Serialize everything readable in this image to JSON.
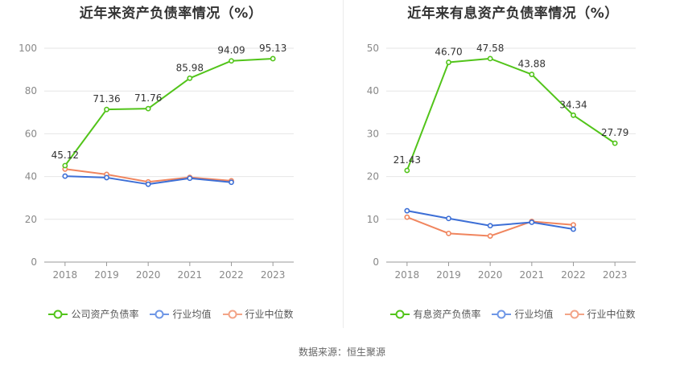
{
  "chart_data": [
    {
      "type": "line",
      "title": "近年来资产负债率情况（%）",
      "categories": [
        "2018",
        "2019",
        "2020",
        "2021",
        "2022",
        "2023"
      ],
      "ylim": [
        0,
        100
      ],
      "yticks": [
        0,
        20,
        40,
        60,
        80,
        100
      ],
      "series": [
        {
          "name": "公司资产负债率",
          "color": "#52c41a",
          "values": [
            45.12,
            71.36,
            71.76,
            85.98,
            94.09,
            95.13
          ],
          "labels": [
            "45.12",
            "71.36",
            "71.76",
            "85.98",
            "94.09",
            "95.13"
          ],
          "show_labels": true
        },
        {
          "name": "行业均值",
          "color": "#3d6fd6",
          "values": [
            40.2,
            39.5,
            36.4,
            39.2,
            37.3,
            null
          ],
          "show_labels": false
        },
        {
          "name": "行业中位数",
          "color": "#f0855e",
          "values": [
            43.5,
            41.0,
            37.5,
            39.6,
            38.0,
            null
          ],
          "show_labels": false
        }
      ],
      "legend": [
        "公司资产负债率",
        "行业均值",
        "行业中位数"
      ],
      "legend_colors": [
        "#52c41a",
        "#6f97e6",
        "#f3a487"
      ]
    },
    {
      "type": "line",
      "title": "近年来有息资产负债率情况（%）",
      "categories": [
        "2018",
        "2019",
        "2020",
        "2021",
        "2022",
        "2023"
      ],
      "ylim": [
        0,
        50
      ],
      "yticks": [
        0,
        10,
        20,
        30,
        40,
        50
      ],
      "series": [
        {
          "name": "有息资产负债率",
          "color": "#52c41a",
          "values": [
            21.43,
            46.7,
            47.58,
            43.88,
            34.34,
            27.79
          ],
          "labels": [
            "21.43",
            "46.70",
            "47.58",
            "43.88",
            "34.34",
            "27.79"
          ],
          "show_labels": true
        },
        {
          "name": "行业均值",
          "color": "#3d6fd6",
          "values": [
            12.0,
            10.2,
            8.5,
            9.3,
            7.7,
            null
          ],
          "show_labels": false
        },
        {
          "name": "行业中位数",
          "color": "#f0855e",
          "values": [
            10.5,
            6.7,
            6.1,
            9.5,
            8.7,
            null
          ],
          "show_labels": false
        }
      ],
      "legend": [
        "有息资产负债率",
        "行业均值",
        "行业中位数"
      ],
      "legend_colors": [
        "#52c41a",
        "#6f97e6",
        "#f3a487"
      ]
    }
  ],
  "source_text": "数据来源：恒生聚源"
}
